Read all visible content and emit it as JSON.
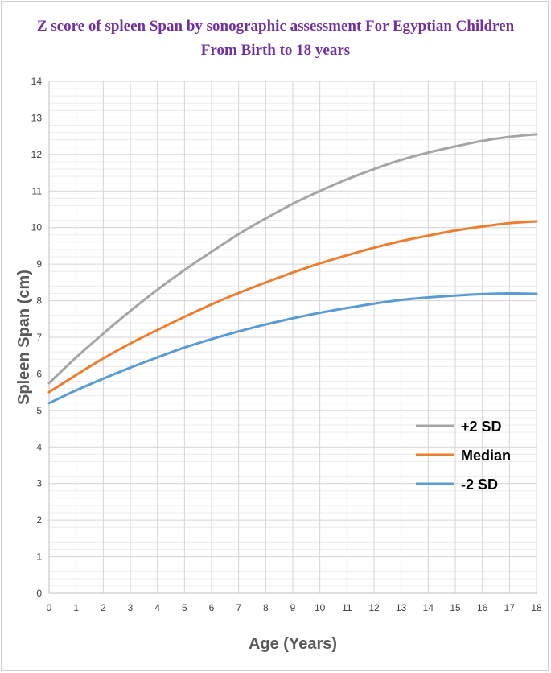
{
  "chart_data": {
    "type": "line",
    "title": "Z score of spleen Span by sonographic assessment For Egyptian Children",
    "subtitle": "From Birth to 18 years",
    "xlabel": "Age (Years)",
    "ylabel": "Spleen Span (cm)",
    "xlim": [
      0,
      18
    ],
    "ylim": [
      0,
      14
    ],
    "x_ticks": [
      "0",
      "1",
      "2",
      "3",
      "4",
      "5",
      "6",
      "7",
      "8",
      "9",
      "10",
      "11",
      "12",
      "13",
      "14",
      "15",
      "16",
      "17",
      "18"
    ],
    "y_ticks": [
      "0",
      "1",
      "2",
      "3",
      "4",
      "5",
      "6",
      "7",
      "8",
      "9",
      "10",
      "11",
      "12",
      "13",
      "14"
    ],
    "grid": true,
    "legend_position": "right-center",
    "x": [
      0,
      1,
      2,
      3,
      4,
      5,
      6,
      7,
      8,
      9,
      10,
      11,
      12,
      13,
      14,
      15,
      16,
      17,
      18
    ],
    "series": [
      {
        "name": "+2 SD",
        "color": "#a5a5a5",
        "values": [
          5.75,
          6.45,
          7.1,
          7.72,
          8.3,
          8.84,
          9.34,
          9.82,
          10.25,
          10.65,
          11.0,
          11.32,
          11.6,
          11.85,
          12.05,
          12.22,
          12.37,
          12.48,
          12.55
        ]
      },
      {
        "name": "Median",
        "color": "#ed7d31",
        "values": [
          5.5,
          5.97,
          6.42,
          6.83,
          7.2,
          7.56,
          7.9,
          8.21,
          8.5,
          8.77,
          9.02,
          9.24,
          9.45,
          9.63,
          9.78,
          9.92,
          10.03,
          10.12,
          10.17
        ]
      },
      {
        "name": "-2 SD",
        "color": "#5b9bd5",
        "values": [
          5.2,
          5.55,
          5.87,
          6.17,
          6.45,
          6.72,
          6.95,
          7.16,
          7.35,
          7.52,
          7.67,
          7.8,
          7.92,
          8.02,
          8.09,
          8.14,
          8.18,
          8.2,
          8.19
        ]
      }
    ]
  }
}
